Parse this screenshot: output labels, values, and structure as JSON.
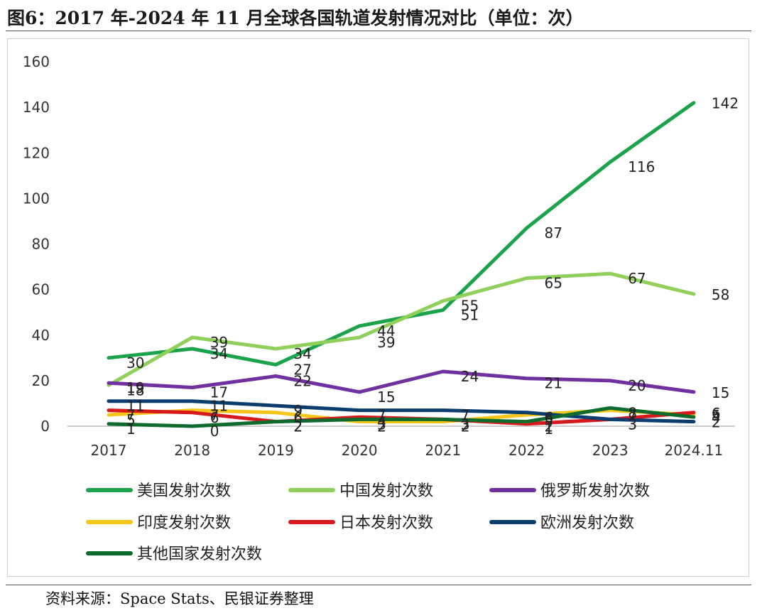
{
  "figure": {
    "title": "图6：2017 年-2024 年 11 月全球各国轨道发射情况对比（单位：次）",
    "source": "资料来源：Space Stats、民银证券整理"
  },
  "chart_data": {
    "type": "line",
    "categories": [
      "2017",
      "2018",
      "2019",
      "2020",
      "2021",
      "2022",
      "2023",
      "2024.11"
    ],
    "ylim": [
      0,
      160
    ],
    "yticks": [
      0,
      20,
      40,
      60,
      80,
      100,
      120,
      140,
      160
    ],
    "grid": false,
    "legend_position": "bottom",
    "series": [
      {
        "name": "美国发射次数",
        "color": "#1aa34a",
        "values": [
          30,
          34,
          27,
          44,
          51,
          87,
          116,
          142
        ],
        "labels": [
          "30",
          "34",
          "27",
          "44",
          "51",
          "87",
          "116",
          "142"
        ]
      },
      {
        "name": "中国发射次数",
        "color": "#8fd05a",
        "values": [
          18,
          39,
          34,
          39,
          55,
          65,
          67,
          58
        ],
        "labels": [
          "18",
          "39",
          "34",
          "39",
          "55",
          "65",
          "67",
          "58"
        ]
      },
      {
        "name": "俄罗斯发射次数",
        "color": "#7030a0",
        "values": [
          19,
          17,
          22,
          15,
          24,
          21,
          20,
          15
        ],
        "labels": [
          "19",
          "17",
          "22",
          "15",
          "24",
          "21",
          "20",
          "15"
        ]
      },
      {
        "name": "印度发射次数",
        "color": "#f5c518",
        "values": [
          5,
          7,
          6,
          2,
          2,
          5,
          7,
          5
        ],
        "labels": [
          "5",
          "7",
          "6",
          "2",
          "2",
          "5",
          "7",
          "5"
        ]
      },
      {
        "name": "日本发射次数",
        "color": "#d7191c",
        "values": [
          7,
          6,
          2,
          4,
          3,
          1,
          3,
          6
        ],
        "labels": [
          "7",
          "6",
          "2",
          "4",
          "3",
          "1",
          "3",
          "6"
        ]
      },
      {
        "name": "欧洲发射次数",
        "color": "#0b3d6e",
        "values": [
          11,
          11,
          9,
          7,
          7,
          6,
          3,
          2
        ],
        "labels": [
          "11",
          "11",
          "9",
          "7",
          "7",
          "6",
          "3",
          "2"
        ]
      },
      {
        "name": "其他国家发射次数",
        "color": "#0e6b2e",
        "values": [
          1,
          0,
          2,
          3,
          3,
          2,
          8,
          4
        ],
        "labels": [
          "1",
          "0",
          "2",
          "3",
          "3",
          "2",
          "8",
          "4"
        ]
      }
    ]
  }
}
